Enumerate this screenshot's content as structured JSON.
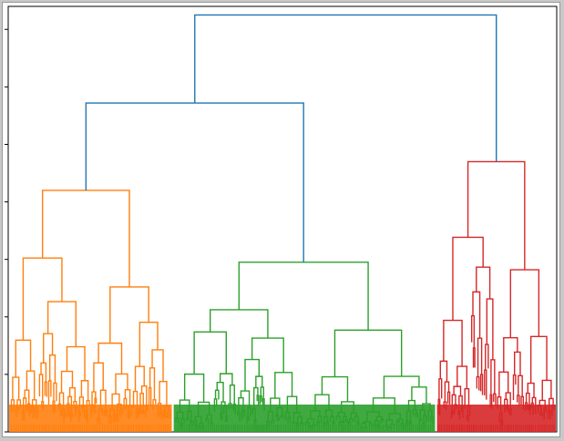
{
  "chart_data": {
    "type": "dendrogram",
    "title": "",
    "xlabel": "",
    "ylabel": "",
    "tick_labels_visible": false,
    "ylim": [
      0,
      7.4
    ],
    "yticks": [
      0,
      1,
      2,
      3,
      4,
      5,
      6,
      7
    ],
    "grid": false,
    "legend": "none",
    "link_colors": {
      "above_threshold": "#1f77b4",
      "cluster_1": "#ff7f0e",
      "cluster_2": "#2ca02c",
      "cluster_3": "#d62728"
    },
    "clusters": [
      {
        "name": "",
        "color": "#ff7f0e",
        "span": [
          0.0,
          0.3
        ],
        "root_height": 4.2,
        "internal_merges": [
          {
            "left": 0.08,
            "right": 0.25,
            "height": 4.2
          },
          {
            "left": 0.03,
            "right": 0.12,
            "height": 3.05
          },
          {
            "left": 0.18,
            "right": 0.3,
            "height": 2.7
          },
          {
            "left": 0.0,
            "right": 0.06,
            "height": 1.95
          },
          {
            "left": 0.17,
            "right": 0.24,
            "height": 2.3
          }
        ]
      },
      {
        "name": "",
        "color": "#2ca02c",
        "span": [
          0.3,
          0.78
        ],
        "root_height": 2.95,
        "internal_merges": [
          {
            "left": 0.41,
            "right": 0.7,
            "height": 2.95
          },
          {
            "left": 0.31,
            "right": 0.51,
            "height": 2.4
          },
          {
            "left": 0.68,
            "right": 0.74,
            "height": 0.95
          },
          {
            "left": 0.33,
            "right": 0.49,
            "height": 1.55
          },
          {
            "left": 0.44,
            "right": 0.53,
            "height": 1.3
          }
        ]
      },
      {
        "name": "",
        "color": "#d62728",
        "span": [
          0.78,
          1.0
        ],
        "root_height": 4.7,
        "internal_merges": [
          {
            "left": 0.92,
            "right": 0.99,
            "height": 4.7
          },
          {
            "left": 0.87,
            "right": 0.96,
            "height": 3.6
          },
          {
            "left": 0.83,
            "right": 0.91,
            "height": 3.15
          },
          {
            "left": 0.8,
            "right": 0.88,
            "height": 2.7
          }
        ]
      }
    ],
    "top_links": [
      {
        "left": 0.15,
        "right": 0.63,
        "height": 5.72
      },
      {
        "left": 0.39,
        "right": 0.97,
        "height": 7.25
      }
    ]
  }
}
